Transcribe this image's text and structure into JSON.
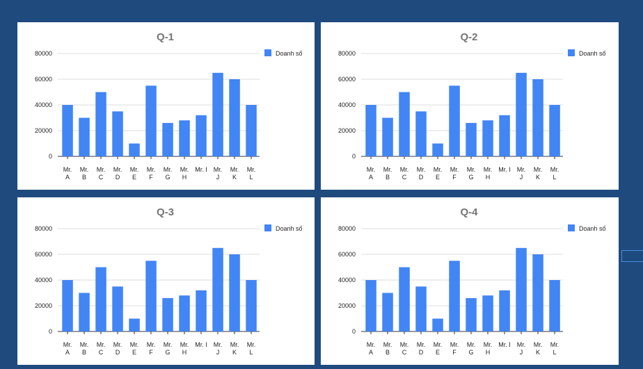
{
  "colors": {
    "bar": "#4285f4",
    "background": "#1e4a7e",
    "panel": "#ffffff"
  },
  "chart_data": [
    {
      "type": "bar",
      "title": "Q-1",
      "categories": [
        "Mr. A",
        "Mr. B",
        "Mr. C",
        "Mr. D",
        "Mr. E",
        "Mr. F",
        "Mr. G",
        "Mr. H",
        "Mr. I",
        "Mr. J",
        "Mr. K",
        "Mr. L"
      ],
      "series": [
        {
          "name": "Doanh số",
          "values": [
            40000,
            30000,
            50000,
            35000,
            10000,
            55000,
            26000,
            28000,
            32000,
            65000,
            60000,
            40000
          ]
        }
      ],
      "ylim": [
        0,
        80000
      ],
      "yticks": [
        0,
        20000,
        40000,
        60000,
        80000
      ],
      "grid": true,
      "legend": "top-right"
    },
    {
      "type": "bar",
      "title": "Q-2",
      "categories": [
        "Mr. A",
        "Mr. B",
        "Mr. C",
        "Mr. D",
        "Mr. E",
        "Mr. F",
        "Mr. G",
        "Mr. H",
        "Mr. I",
        "Mr. J",
        "Mr. K",
        "Mr. L"
      ],
      "series": [
        {
          "name": "Doanh số",
          "values": [
            40000,
            30000,
            50000,
            35000,
            10000,
            55000,
            26000,
            28000,
            32000,
            65000,
            60000,
            40000
          ]
        }
      ],
      "ylim": [
        0,
        80000
      ],
      "yticks": [
        0,
        20000,
        40000,
        60000,
        80000
      ],
      "grid": true,
      "legend": "top-right"
    },
    {
      "type": "bar",
      "title": "Q-3",
      "categories": [
        "Mr. A",
        "Mr. B",
        "Mr. C",
        "Mr. D",
        "Mr. E",
        "Mr. F",
        "Mr. G",
        "Mr. H",
        "Mr. I",
        "Mr. J",
        "Mr. K",
        "Mr. L"
      ],
      "series": [
        {
          "name": "Doanh số",
          "values": [
            40000,
            30000,
            50000,
            35000,
            10000,
            55000,
            26000,
            28000,
            32000,
            65000,
            60000,
            40000
          ]
        }
      ],
      "ylim": [
        0,
        80000
      ],
      "yticks": [
        0,
        20000,
        40000,
        60000,
        80000
      ],
      "grid": true,
      "legend": "top-right"
    },
    {
      "type": "bar",
      "title": "Q-4",
      "categories": [
        "Mr. A",
        "Mr. B",
        "Mr. C",
        "Mr. D",
        "Mr. E",
        "Mr. F",
        "Mr. G",
        "Mr. H",
        "Mr. I",
        "Mr. J",
        "Mr. K",
        "Mr. L"
      ],
      "series": [
        {
          "name": "Doanh số",
          "values": [
            40000,
            30000,
            50000,
            35000,
            10000,
            55000,
            26000,
            28000,
            32000,
            65000,
            60000,
            40000
          ]
        }
      ],
      "ylim": [
        0,
        80000
      ],
      "yticks": [
        0,
        20000,
        40000,
        60000,
        80000
      ],
      "grid": true,
      "legend": "top-right"
    }
  ]
}
